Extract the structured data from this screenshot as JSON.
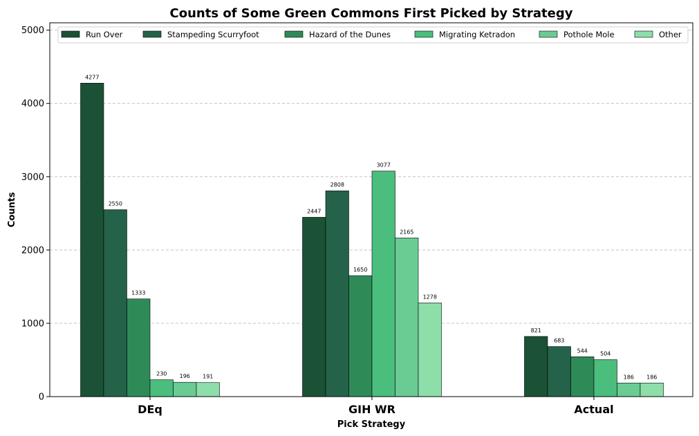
{
  "chart_data": {
    "type": "bar",
    "title": "Counts of Some Green Commons First Picked by Strategy",
    "xlabel": "Pick Strategy",
    "ylabel": "Counts",
    "categories": [
      "DEq",
      "GIH WR",
      "Actual"
    ],
    "ylim": [
      0,
      5100
    ],
    "yticks": [
      0,
      1000,
      2000,
      3000,
      4000,
      5000
    ],
    "grid": "horizontal-dashed",
    "legend": "top, single row",
    "series": [
      {
        "name": "Run Over",
        "color": "#1b5235",
        "values": [
          4277,
          2447,
          821
        ]
      },
      {
        "name": "Stampeding Scurryfoot",
        "color": "#24634a",
        "values": [
          2550,
          2808,
          683
        ]
      },
      {
        "name": "Hazard of the Dunes",
        "color": "#2e8b57",
        "values": [
          1333,
          1650,
          544
        ]
      },
      {
        "name": "Migrating Ketradon",
        "color": "#4bbd7d",
        "values": [
          230,
          3077,
          504
        ]
      },
      {
        "name": "Pothole Mole",
        "color": "#6acc93",
        "values": [
          196,
          2165,
          186
        ]
      },
      {
        "name": "Other",
        "color": "#8ddea9",
        "values": [
          191,
          1278,
          186
        ]
      }
    ]
  }
}
